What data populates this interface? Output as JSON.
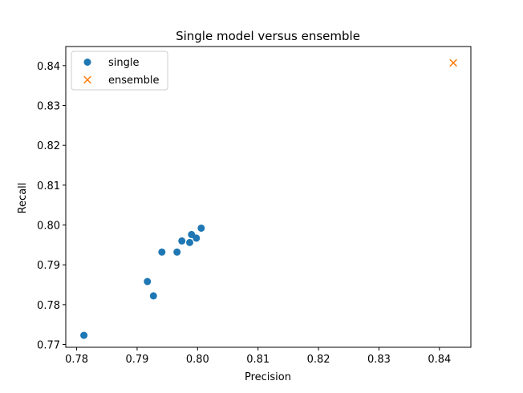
{
  "chart_data": {
    "type": "scatter",
    "title": "Single model versus ensemble",
    "xlabel": "Precision",
    "ylabel": "Recall",
    "xlim": [
      0.7782,
      0.8452
    ],
    "ylim": [
      0.7693,
      0.8448
    ],
    "xticks": [
      0.78,
      0.79,
      0.8,
      0.81,
      0.82,
      0.83,
      0.84
    ],
    "yticks": [
      0.77,
      0.78,
      0.79,
      0.8,
      0.81,
      0.82,
      0.83,
      0.84
    ],
    "xtick_labels": [
      "0.78",
      "0.79",
      "0.80",
      "0.81",
      "0.82",
      "0.83",
      "0.84"
    ],
    "ytick_labels": [
      "0.77",
      "0.78",
      "0.79",
      "0.80",
      "0.81",
      "0.82",
      "0.83",
      "0.84"
    ],
    "grid": false,
    "legend_position": "top-left",
    "series": [
      {
        "name": "single",
        "marker": "circle",
        "color": "#1f77b4",
        "points": [
          [
            0.7812,
            0.7723
          ],
          [
            0.7917,
            0.7858
          ],
          [
            0.7927,
            0.7822
          ],
          [
            0.7941,
            0.7932
          ],
          [
            0.7966,
            0.7932
          ],
          [
            0.7974,
            0.796
          ],
          [
            0.7987,
            0.7956
          ],
          [
            0.799,
            0.7976
          ],
          [
            0.7998,
            0.7967
          ],
          [
            0.8006,
            0.7992
          ]
        ]
      },
      {
        "name": "ensemble",
        "marker": "x",
        "color": "#ff7f0e",
        "points": [
          [
            0.8423,
            0.8407
          ]
        ]
      }
    ]
  }
}
